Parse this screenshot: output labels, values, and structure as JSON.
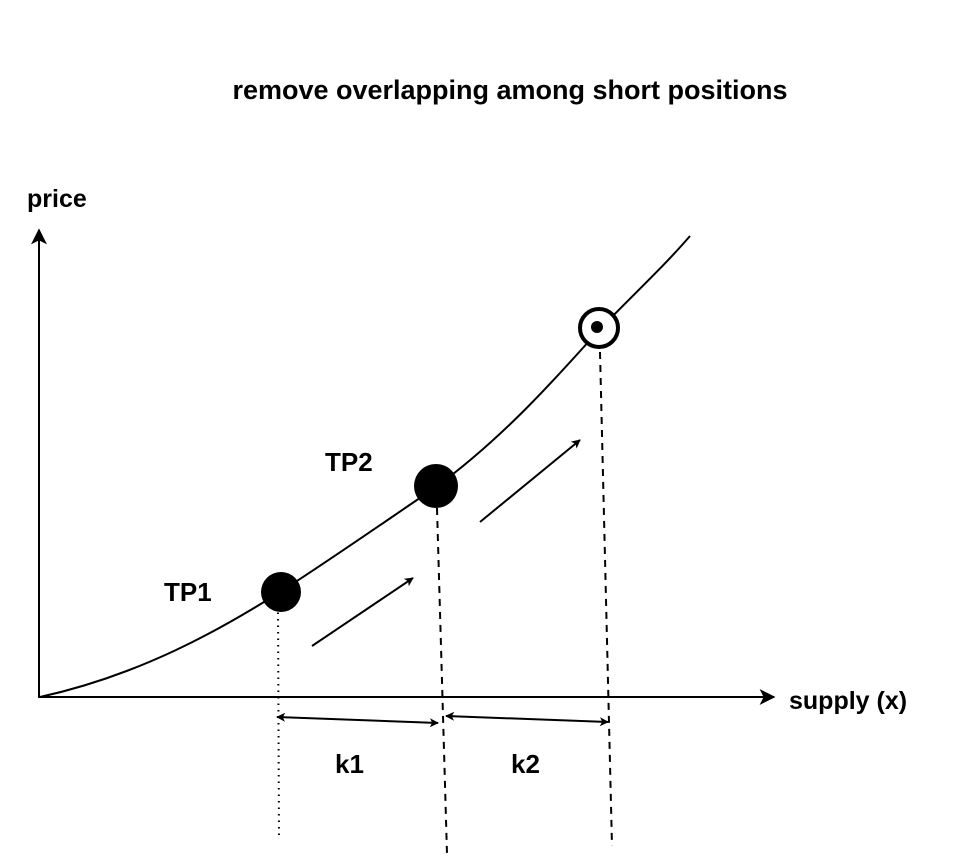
{
  "title": "remove overlapping among short positions",
  "axes": {
    "y_label": "price",
    "x_label": "supply (x)"
  },
  "points": {
    "tp1": {
      "label": "TP1"
    },
    "tp2": {
      "label": "TP2"
    }
  },
  "intervals": {
    "k1": {
      "label": "k1"
    },
    "k2": {
      "label": "k2"
    }
  },
  "colors": {
    "ink": "#000000",
    "background": "#ffffff"
  }
}
